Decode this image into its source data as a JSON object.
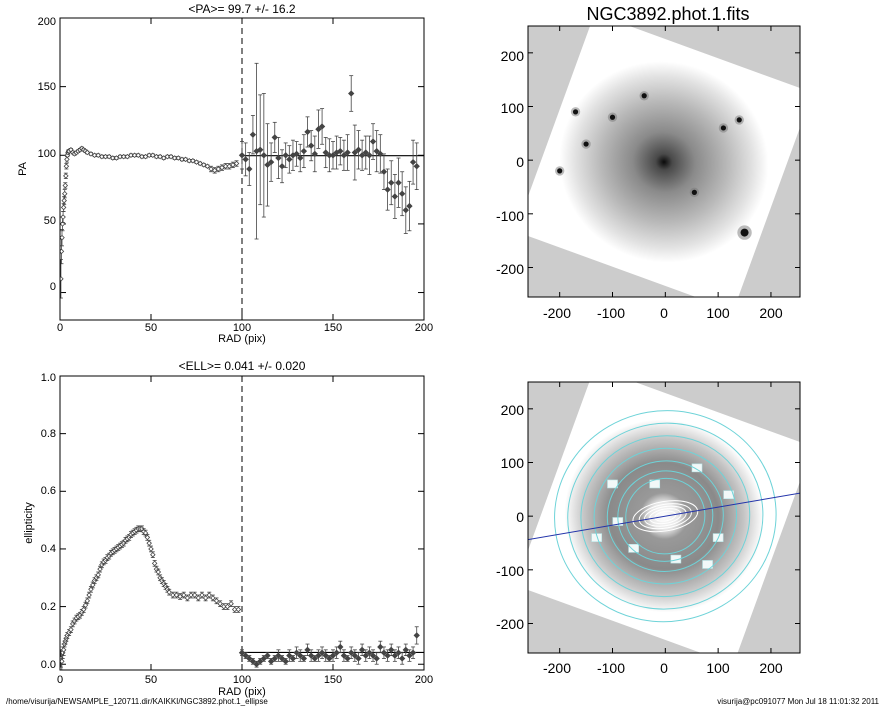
{
  "footer": {
    "path": "/home/visurija/NEWSAMPLE_120711.dir/KAIKKI/NGC3892.phot.1_ellipse",
    "stamp": "visurija@pc091077  Mon Jul 18 11:01:32 2011"
  },
  "colors": {
    "axes": "#000000",
    "marker": "#444444",
    "contour": "#6ed3d8",
    "inner_contour": "#ffffff",
    "major_axis_line": "#2233aa",
    "background_pad": "#cccccc"
  },
  "chart_data": [
    {
      "type": "scatter",
      "title": "<PA>=  99.7 +/-  16.2",
      "xlabel": "RAD (pix)",
      "ylabel": "PA",
      "xlim": [
        0,
        200
      ],
      "ylim": [
        -20,
        200
      ],
      "xticks": [
        0,
        50,
        100,
        150,
        200
      ],
      "yticks": [
        0,
        50,
        100,
        150,
        200
      ],
      "mean_line": 99.7,
      "fit_limit_x": 100,
      "series": [
        {
          "x": [
            0.5,
            0.8,
            1.1,
            1.4,
            1.7,
            2.0,
            2.3,
            2.6,
            2.9,
            3.2,
            3.5,
            3.8,
            4.1,
            4.4,
            4.7,
            5,
            6,
            7,
            8,
            9,
            10,
            11,
            12,
            13,
            14,
            15,
            17,
            19,
            21,
            23,
            25,
            27,
            29,
            31,
            33,
            35,
            37,
            39,
            41,
            43,
            45,
            47,
            49,
            51,
            53,
            55,
            57,
            59,
            61,
            63,
            65,
            67,
            69,
            71,
            73,
            75,
            77,
            79,
            81,
            83,
            85,
            87,
            89,
            91,
            93,
            95,
            97
          ],
          "y": [
            10,
            30,
            40,
            50,
            55,
            62,
            67,
            72,
            78,
            85,
            92,
            97,
            100,
            102,
            103,
            103,
            104,
            102,
            101,
            102,
            103,
            104,
            105,
            104,
            103,
            102,
            101,
            100,
            100,
            99,
            99,
            99,
            98,
            98,
            99,
            99,
            99,
            100,
            100,
            100,
            99,
            99,
            100,
            100,
            99,
            99,
            98,
            99,
            99,
            98,
            98,
            97,
            97,
            96,
            96,
            95,
            94,
            93,
            92,
            90,
            89,
            90,
            91,
            92,
            92,
            93,
            94
          ],
          "err": [
            14,
            9,
            6,
            5,
            4,
            3,
            3,
            3,
            2,
            2,
            2,
            2,
            1,
            1,
            1,
            1,
            1,
            1,
            1,
            1,
            1,
            1,
            1,
            1,
            1,
            1,
            1,
            1,
            1,
            1,
            1,
            1,
            1,
            1,
            1,
            1,
            1,
            1,
            1,
            1,
            1,
            1,
            1,
            1,
            1,
            1,
            1,
            1,
            1,
            1,
            1,
            1,
            1,
            1,
            1,
            1,
            1,
            1,
            1,
            2,
            2,
            2,
            2,
            2,
            2,
            2,
            2
          ]
        },
        {
          "x": [
            100,
            102,
            104,
            106,
            108,
            110,
            112,
            114,
            116,
            118,
            120,
            122,
            124,
            126,
            128,
            130,
            132,
            134,
            136,
            138,
            140,
            142,
            144,
            146,
            148,
            150,
            152,
            154,
            156,
            158,
            160,
            162,
            164,
            166,
            168,
            170,
            172,
            174,
            176,
            178,
            180,
            182,
            184,
            186,
            188,
            190,
            192,
            194,
            196
          ],
          "y": [
            100,
            97,
            90,
            115,
            103,
            104,
            100,
            93,
            95,
            113,
            98,
            92,
            100,
            97,
            100,
            101,
            98,
            103,
            117,
            107,
            101,
            119,
            121,
            102,
            100,
            100,
            102,
            103,
            100,
            102,
            145,
            102,
            104,
            100,
            102,
            100,
            110,
            103,
            101,
            88,
            75,
            80,
            70,
            80,
            72,
            60,
            63,
            95,
            92
          ],
          "err": [
            10,
            12,
            12,
            14,
            64,
            40,
            45,
            30,
            14,
            11,
            15,
            12,
            9,
            10,
            11,
            9,
            10,
            12,
            11,
            11,
            13,
            14,
            13,
            11,
            12,
            10,
            12,
            10,
            11,
            13,
            13,
            20,
            14,
            11,
            12,
            14,
            13,
            15,
            14,
            13,
            15,
            16,
            16,
            18,
            16,
            17,
            18,
            16,
            17
          ]
        }
      ]
    },
    {
      "type": "scatter",
      "title": "<ELL>= 0.041 +/-  0.020",
      "xlabel": "RAD (pix)",
      "ylabel": "ellipticity",
      "xlim": [
        0,
        200
      ],
      "ylim": [
        -0.02,
        1.0
      ],
      "xticks": [
        0,
        50,
        100,
        150,
        200
      ],
      "yticks": [
        0.0,
        0.2,
        0.4,
        0.6,
        0.8,
        1.0
      ],
      "mean_line": 0.041,
      "fit_limit_x": 100,
      "series": [
        {
          "x": [
            0.5,
            1,
            1.5,
            2,
            2.5,
            3,
            3.5,
            4,
            5,
            6,
            7,
            8,
            9,
            10,
            11,
            12,
            13,
            14,
            15,
            16,
            17,
            18,
            19,
            20,
            21,
            22,
            23,
            24,
            25,
            26,
            27,
            28,
            29,
            30,
            31,
            32,
            33,
            34,
            35,
            36,
            37,
            38,
            39,
            40,
            41,
            42,
            43,
            44,
            45,
            46,
            47,
            48,
            49,
            50,
            51,
            52,
            53,
            54,
            55,
            56,
            57,
            58,
            59,
            60,
            62,
            64,
            66,
            68,
            70,
            72,
            74,
            76,
            78,
            80,
            82,
            84,
            86,
            88,
            90,
            92,
            94,
            96,
            98
          ],
          "y": [
            0.02,
            0.01,
            0.04,
            0.05,
            0.07,
            0.08,
            0.09,
            0.1,
            0.11,
            0.12,
            0.14,
            0.15,
            0.16,
            0.165,
            0.17,
            0.18,
            0.19,
            0.205,
            0.22,
            0.24,
            0.26,
            0.275,
            0.29,
            0.3,
            0.31,
            0.33,
            0.345,
            0.355,
            0.36,
            0.37,
            0.375,
            0.385,
            0.39,
            0.395,
            0.4,
            0.405,
            0.41,
            0.415,
            0.42,
            0.43,
            0.435,
            0.44,
            0.45,
            0.455,
            0.46,
            0.465,
            0.47,
            0.47,
            0.47,
            0.46,
            0.455,
            0.44,
            0.42,
            0.4,
            0.38,
            0.35,
            0.33,
            0.32,
            0.3,
            0.29,
            0.28,
            0.27,
            0.26,
            0.25,
            0.24,
            0.24,
            0.235,
            0.24,
            0.23,
            0.24,
            0.24,
            0.23,
            0.24,
            0.23,
            0.24,
            0.23,
            0.22,
            0.21,
            0.2,
            0.2,
            0.21,
            0.19,
            0.19
          ],
          "err": [
            0.03,
            0.03,
            0.02,
            0.02,
            0.01,
            0.01,
            0.01,
            0.01,
            0.01,
            0.01,
            0.01,
            0.01,
            0.01,
            0.01,
            0.01,
            0.01,
            0.01,
            0.01,
            0.01,
            0.01,
            0.01,
            0.01,
            0.01,
            0.01,
            0.01,
            0.01,
            0.01,
            0.01,
            0.01,
            0.01,
            0.01,
            0.01,
            0.01,
            0.01,
            0.01,
            0.01,
            0.01,
            0.01,
            0.01,
            0.01,
            0.01,
            0.01,
            0.01,
            0.01,
            0.01,
            0.01,
            0.01,
            0.01,
            0.01,
            0.01,
            0.01,
            0.01,
            0.01,
            0.01,
            0.01,
            0.01,
            0.01,
            0.01,
            0.01,
            0.01,
            0.01,
            0.01,
            0.01,
            0.01,
            0.01,
            0.01,
            0.01,
            0.01,
            0.01,
            0.01,
            0.01,
            0.01,
            0.01,
            0.01,
            0.01,
            0.01,
            0.01,
            0.01,
            0.01,
            0.01,
            0.01,
            0.01,
            0.01
          ]
        },
        {
          "x": [
            100,
            102,
            104,
            106,
            108,
            110,
            112,
            114,
            116,
            118,
            120,
            122,
            124,
            126,
            128,
            130,
            132,
            134,
            136,
            138,
            140,
            142,
            144,
            146,
            148,
            150,
            152,
            154,
            156,
            158,
            160,
            162,
            164,
            166,
            168,
            170,
            172,
            174,
            176,
            178,
            180,
            182,
            184,
            186,
            188,
            190,
            192,
            194,
            196
          ],
          "y": [
            0.04,
            0.03,
            0.02,
            0.01,
            0.0,
            0.01,
            0.02,
            0.03,
            0.01,
            0.02,
            0.03,
            0.02,
            0.01,
            0.03,
            0.02,
            0.04,
            0.03,
            0.02,
            0.05,
            0.03,
            0.02,
            0.03,
            0.04,
            0.03,
            0.02,
            0.03,
            0.04,
            0.06,
            0.03,
            0.02,
            0.04,
            0.03,
            0.02,
            0.05,
            0.03,
            0.04,
            0.03,
            0.02,
            0.06,
            0.04,
            0.03,
            0.05,
            0.03,
            0.04,
            0.02,
            0.05,
            0.03,
            0.04,
            0.1
          ],
          "err": [
            0.01,
            0.01,
            0.01,
            0.01,
            0.01,
            0.01,
            0.01,
            0.01,
            0.01,
            0.01,
            0.02,
            0.01,
            0.01,
            0.02,
            0.01,
            0.02,
            0.02,
            0.01,
            0.02,
            0.02,
            0.01,
            0.02,
            0.02,
            0.02,
            0.01,
            0.02,
            0.02,
            0.02,
            0.02,
            0.01,
            0.02,
            0.02,
            0.02,
            0.02,
            0.02,
            0.02,
            0.02,
            0.02,
            0.02,
            0.02,
            0.02,
            0.02,
            0.02,
            0.02,
            0.02,
            0.02,
            0.02,
            0.02,
            0.03
          ]
        }
      ]
    },
    {
      "type": "heatmap",
      "title": "NGC3892.phot.1.fits",
      "xlim": [
        -260,
        255
      ],
      "ylim": [
        -255,
        250
      ],
      "xticks": [
        -200,
        -100,
        0,
        100,
        200
      ],
      "yticks": [
        200,
        100,
        0,
        -100,
        -200
      ],
      "image_rotation_deg": 20,
      "point_sources": [
        [
          140,
          75
        ],
        [
          55,
          -60
        ],
        [
          150,
          -135
        ],
        [
          -100,
          80
        ],
        [
          -200,
          -20
        ],
        [
          110,
          60
        ],
        [
          -170,
          90
        ],
        [
          -150,
          30
        ],
        [
          -40,
          120
        ]
      ]
    },
    {
      "type": "heatmap",
      "xlim": [
        -260,
        255
      ],
      "ylim": [
        -255,
        250
      ],
      "xticks": [
        -200,
        -100,
        0,
        100,
        200
      ],
      "yticks": [
        200,
        100,
        0,
        -100,
        -200
      ],
      "image_rotation_deg": 20,
      "major_axis_pa_deg": 9.7,
      "contour_radii": [
        20,
        30,
        40,
        50,
        62,
        75,
        90,
        110,
        135,
        160,
        185,
        210
      ]
    }
  ]
}
